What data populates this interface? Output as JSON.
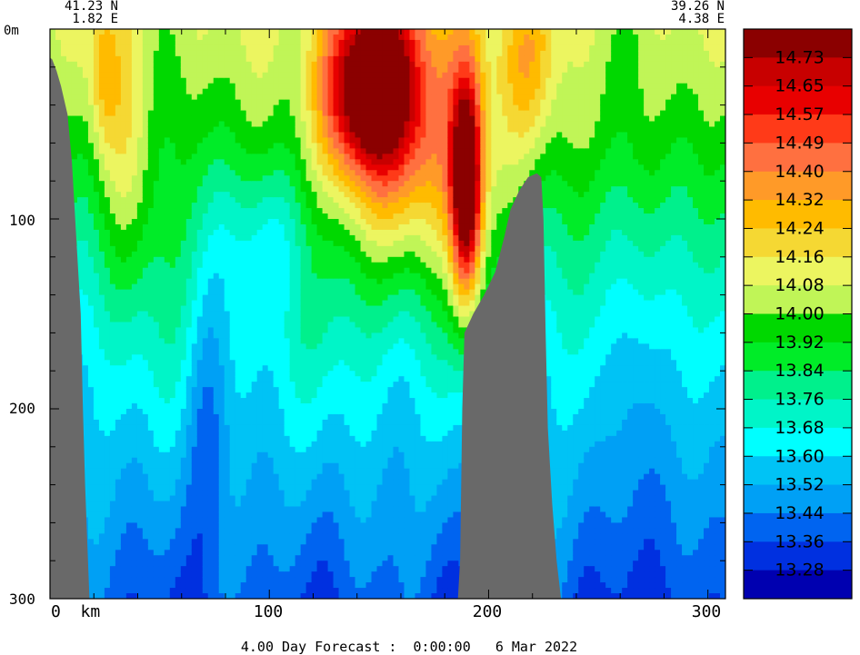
{
  "chart_data": {
    "type": "heatmap",
    "title": "",
    "footer": "4.00 Day Forecast :  0:00:00   6 Mar 2022",
    "start_coord": {
      "lat": "41.23 N",
      "lon": "1.82 E"
    },
    "end_coord": {
      "lat": "39.26 N",
      "lon": "4.38 E"
    },
    "x_axis": {
      "range": [
        0,
        308
      ],
      "ticks": [
        0,
        100,
        200,
        300
      ],
      "tick_labels": [
        "0  km",
        "100",
        "200",
        "300"
      ]
    },
    "y_axis": {
      "range": [
        0,
        300
      ],
      "inverted": true,
      "ticks": [
        0,
        100,
        200,
        300
      ],
      "tick_labels": [
        "0m",
        "100",
        "200",
        "300"
      ]
    },
    "colorbar": {
      "labels": [
        "14.73",
        "14.65",
        "14.57",
        "14.49",
        "14.40",
        "14.32",
        "14.24",
        "14.16",
        "14.08",
        "14.00",
        "13.92",
        "13.84",
        "13.76",
        "13.68",
        "13.60",
        "13.52",
        "13.44",
        "13.36",
        "13.28"
      ],
      "colors": [
        "#8b0000",
        "#c80000",
        "#e80000",
        "#ff3a18",
        "#ff7040",
        "#ff9a28",
        "#ffbb00",
        "#f5d833",
        "#ecf560",
        "#c0f557",
        "#00d800",
        "#00ec28",
        "#00f08c",
        "#00f5c8",
        "#00ffff",
        "#00c3f5",
        "#00a0f5",
        "#0064f0",
        "#0030e0",
        "#0000b0"
      ]
    },
    "land_color": "#696969",
    "bathymetry": [
      {
        "km": 0,
        "depth": 15
      },
      {
        "km": 1,
        "depth": 16
      },
      {
        "km": 3,
        "depth": 22
      },
      {
        "km": 5,
        "depth": 30
      },
      {
        "km": 8,
        "depth": 45
      },
      {
        "km": 10,
        "depth": 70
      },
      {
        "km": 12,
        "depth": 110
      },
      {
        "km": 14,
        "depth": 150
      },
      {
        "km": 15,
        "depth": 200
      },
      {
        "km": 16,
        "depth": 240
      },
      {
        "km": 17,
        "depth": 270
      },
      {
        "km": 18,
        "depth": 300
      },
      {
        "km": 186,
        "depth": 300
      },
      {
        "km": 187,
        "depth": 280
      },
      {
        "km": 188,
        "depth": 200
      },
      {
        "km": 189,
        "depth": 160
      },
      {
        "km": 193,
        "depth": 150
      },
      {
        "km": 198,
        "depth": 140
      },
      {
        "km": 203,
        "depth": 128
      },
      {
        "km": 207,
        "depth": 110
      },
      {
        "km": 210,
        "depth": 95
      },
      {
        "km": 214,
        "depth": 85
      },
      {
        "km": 218,
        "depth": 78
      },
      {
        "km": 222,
        "depth": 76
      },
      {
        "km": 224,
        "depth": 78
      },
      {
        "km": 225,
        "depth": 100
      },
      {
        "km": 226,
        "depth": 160
      },
      {
        "km": 227,
        "depth": 210
      },
      {
        "km": 229,
        "depth": 250
      },
      {
        "km": 231,
        "depth": 280
      },
      {
        "km": 233,
        "depth": 300
      }
    ],
    "temperature_features": [
      {
        "km": 145,
        "depth": 30,
        "value": 14.78,
        "sx": 20,
        "sz": 45
      },
      {
        "km": 190,
        "depth": 85,
        "value": 14.78,
        "sx": 7,
        "sz": 60
      },
      {
        "km": 165,
        "depth": 60,
        "value": 14.4,
        "sx": 40,
        "sz": 75
      },
      {
        "km": 218,
        "depth": 20,
        "value": 14.2,
        "sx": 12,
        "sz": 40
      },
      {
        "km": 25,
        "depth": 25,
        "value": 14.2,
        "sx": 7,
        "sz": 40
      },
      {
        "km": 35,
        "depth": 70,
        "value": 14.1,
        "sx": 14,
        "sz": 70
      },
      {
        "km": 60,
        "depth": 10,
        "value": 14.05,
        "sx": 12,
        "sz": 30
      },
      {
        "km": 175,
        "depth": 340,
        "value": 13.25,
        "sx": 8,
        "sz": 90
      },
      {
        "km": 245,
        "depth": 330,
        "value": 13.28,
        "sx": 12,
        "sz": 70
      },
      {
        "km": 290,
        "depth": 300,
        "value": 13.32,
        "sx": 18,
        "sz": 90
      },
      {
        "km": 72,
        "depth": 200,
        "value": 13.45,
        "sx": 10,
        "sz": 80
      },
      {
        "km": 265,
        "depth": 170,
        "value": 13.5,
        "sx": 12,
        "sz": 80
      },
      {
        "km": 100,
        "depth": 110,
        "value": 13.65,
        "sx": 25,
        "sz": 40
      },
      {
        "km": 258,
        "depth": 50,
        "value": 14.0,
        "sx": 28,
        "sz": 45
      }
    ]
  }
}
